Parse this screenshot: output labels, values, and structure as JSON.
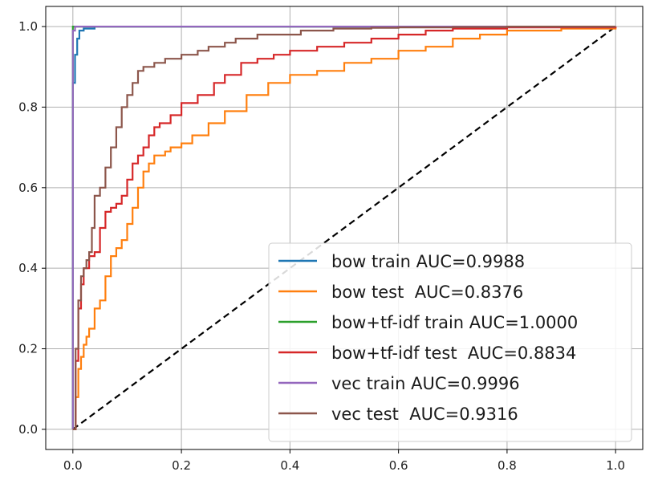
{
  "chart_data": {
    "type": "line",
    "title": "",
    "xlabel": "",
    "ylabel": "",
    "xlim": [
      -0.05,
      1.05
    ],
    "ylim": [
      -0.05,
      1.05
    ],
    "xticks": [
      "0.0",
      "0.2",
      "0.4",
      "0.6",
      "0.8",
      "1.0"
    ],
    "yticks": [
      "0.0",
      "0.2",
      "0.4",
      "0.6",
      "0.8",
      "1.0"
    ],
    "grid": true,
    "legend_position": "lower-right",
    "diagonal": {
      "x": [
        0,
        1
      ],
      "y": [
        0,
        1
      ],
      "style": "dashed",
      "color": "#000000"
    },
    "series": [
      {
        "name": "bow train AUC=0.9988",
        "color": "#1f77b4",
        "x": [
          0,
          0,
          0.004,
          0.004,
          0.008,
          0.008,
          0.012,
          0.012,
          0.02,
          0.02,
          0.04,
          1.0
        ],
        "y": [
          0,
          0.86,
          0.86,
          0.93,
          0.93,
          0.97,
          0.97,
          0.99,
          0.99,
          0.995,
          1.0,
          1.0
        ]
      },
      {
        "name": "bow test  AUC=0.8376",
        "color": "#ff7f0e",
        "x": [
          0,
          0.005,
          0.01,
          0.015,
          0.02,
          0.025,
          0.03,
          0.04,
          0.05,
          0.06,
          0.06,
          0.07,
          0.07,
          0.08,
          0.09,
          0.1,
          0.11,
          0.12,
          0.13,
          0.14,
          0.15,
          0.17,
          0.18,
          0.2,
          0.22,
          0.25,
          0.28,
          0.32,
          0.36,
          0.4,
          0.45,
          0.5,
          0.55,
          0.6,
          0.65,
          0.7,
          0.75,
          0.8,
          0.9,
          1.0
        ],
        "y": [
          0,
          0.08,
          0.15,
          0.18,
          0.21,
          0.23,
          0.25,
          0.3,
          0.32,
          0.32,
          0.38,
          0.4,
          0.43,
          0.45,
          0.47,
          0.51,
          0.55,
          0.6,
          0.64,
          0.66,
          0.68,
          0.69,
          0.7,
          0.71,
          0.73,
          0.76,
          0.79,
          0.83,
          0.86,
          0.88,
          0.89,
          0.91,
          0.92,
          0.94,
          0.95,
          0.97,
          0.98,
          0.99,
          0.995,
          1.0
        ]
      },
      {
        "name": "bow+tf-idf train AUC=1.0000",
        "color": "#2ca02c",
        "x": [
          0,
          0,
          1.0
        ],
        "y": [
          0,
          1.0,
          1.0
        ]
      },
      {
        "name": "bow+tf-idf test  AUC=0.8834",
        "color": "#d62728",
        "x": [
          0,
          0.005,
          0.01,
          0.015,
          0.02,
          0.03,
          0.04,
          0.05,
          0.06,
          0.07,
          0.08,
          0.09,
          0.1,
          0.11,
          0.12,
          0.13,
          0.14,
          0.15,
          0.16,
          0.18,
          0.2,
          0.23,
          0.26,
          0.28,
          0.31,
          0.34,
          0.37,
          0.4,
          0.45,
          0.5,
          0.55,
          0.6,
          0.65,
          0.7,
          0.8,
          1.0
        ],
        "y": [
          0,
          0.17,
          0.3,
          0.36,
          0.4,
          0.43,
          0.44,
          0.5,
          0.54,
          0.55,
          0.56,
          0.58,
          0.62,
          0.66,
          0.68,
          0.7,
          0.73,
          0.75,
          0.76,
          0.78,
          0.81,
          0.83,
          0.86,
          0.88,
          0.91,
          0.92,
          0.93,
          0.94,
          0.95,
          0.96,
          0.97,
          0.98,
          0.99,
          0.995,
          0.998,
          1.0
        ]
      },
      {
        "name": "vec train AUC=0.9996",
        "color": "#9467bd",
        "x": [
          0,
          0,
          0.004,
          0.004,
          1.0
        ],
        "y": [
          0,
          0.99,
          0.99,
          1.0,
          1.0
        ]
      },
      {
        "name": "vec test  AUC=0.9316",
        "color": "#8c564b",
        "x": [
          0,
          0.005,
          0.01,
          0.015,
          0.02,
          0.025,
          0.03,
          0.035,
          0.04,
          0.05,
          0.06,
          0.07,
          0.08,
          0.09,
          0.1,
          0.11,
          0.12,
          0.13,
          0.15,
          0.17,
          0.2,
          0.23,
          0.25,
          0.28,
          0.3,
          0.34,
          0.38,
          0.42,
          0.48,
          0.55,
          0.6,
          0.7,
          0.8,
          1.0
        ],
        "y": [
          0,
          0.2,
          0.32,
          0.38,
          0.4,
          0.42,
          0.44,
          0.5,
          0.58,
          0.6,
          0.65,
          0.7,
          0.75,
          0.8,
          0.83,
          0.86,
          0.89,
          0.9,
          0.91,
          0.92,
          0.93,
          0.94,
          0.95,
          0.96,
          0.97,
          0.98,
          0.98,
          0.99,
          0.995,
          0.997,
          0.998,
          0.999,
          1.0,
          1.0
        ]
      }
    ]
  }
}
